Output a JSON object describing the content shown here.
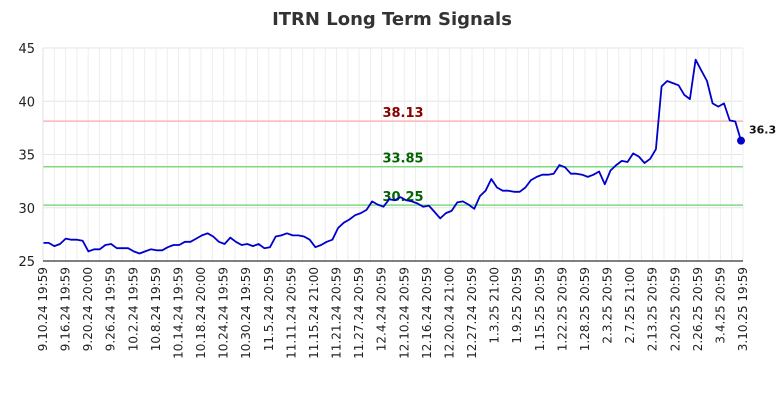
{
  "chart_data": {
    "type": "line",
    "title": "ITRN Long Term Signals",
    "xlabel": "",
    "ylabel": "",
    "ylim": [
      25,
      45
    ],
    "yticks": [
      25,
      30,
      35,
      40,
      45
    ],
    "grid": true,
    "x_tick_labels": [
      "9.10.24 19:59",
      "9.16.24 19:59",
      "9.20.24 20:00",
      "9.26.24 19:59",
      "10.2.24 19:59",
      "10.8.24 19:59",
      "10.14.24 19:59",
      "10.18.24 20:00",
      "10.24.24 19:59",
      "10.30.24 19:59",
      "11.5.24 20:59",
      "11.11.24 20:59",
      "11.15.24 21:00",
      "11.21.24 20:59",
      "11.27.24 20:59",
      "12.4.24 20:59",
      "12.10.24 20:59",
      "12.16.24 20:59",
      "12.20.24 21:00",
      "12.27.24 20:59",
      "1.3.25 21:00",
      "1.9.25 20:59",
      "1.15.25 20:59",
      "1.22.25 20:59",
      "1.28.25 20:59",
      "2.3.25 20:59",
      "2.7.25 21:00",
      "2.13.25 20:59",
      "2.20.25 20:59",
      "2.26.25 20:59",
      "3.4.25 20:59",
      "3.10.25 19:59"
    ],
    "reference_lines": [
      {
        "label": "38.13",
        "value": 38.13,
        "color": "#ffb3b3",
        "label_color": "#8b0000"
      },
      {
        "label": "33.85",
        "value": 33.85,
        "color": "#80d980",
        "label_color": "#006400"
      },
      {
        "label": "30.25",
        "value": 30.25,
        "color": "#80d980",
        "label_color": "#006400"
      }
    ],
    "series": [
      {
        "color": "#0000cc",
        "values": [
          26.7,
          26.7,
          26.4,
          26.6,
          27.1,
          27.0,
          27.0,
          26.9,
          25.9,
          26.1,
          26.1,
          26.5,
          26.6,
          26.2,
          26.2,
          26.2,
          25.9,
          25.7,
          25.9,
          26.1,
          26.0,
          26.0,
          26.3,
          26.5,
          26.5,
          26.8,
          26.8,
          27.1,
          27.4,
          27.6,
          27.3,
          26.8,
          26.6,
          27.2,
          26.8,
          26.5,
          26.6,
          26.4,
          26.6,
          26.2,
          26.3,
          27.3,
          27.4,
          27.6,
          27.4,
          27.4,
          27.3,
          27.0,
          26.3,
          26.5,
          26.8,
          27.0,
          28.1,
          28.6,
          28.9,
          29.3,
          29.5,
          29.8,
          30.6,
          30.3,
          30.1,
          30.8,
          30.7,
          31.0,
          30.7,
          30.6,
          30.4,
          30.1,
          30.2,
          29.6,
          29.0,
          29.5,
          29.7,
          30.5,
          30.6,
          30.3,
          29.9,
          31.1,
          31.6,
          32.7,
          31.9,
          31.6,
          31.6,
          31.5,
          31.5,
          31.9,
          32.6,
          32.9,
          33.1,
          33.1,
          33.2,
          34.0,
          33.8,
          33.2,
          33.2,
          33.1,
          32.9,
          33.1,
          33.4,
          32.2,
          33.5,
          34.0,
          34.4,
          34.3,
          35.1,
          34.8,
          34.2,
          34.6,
          35.5,
          41.4,
          41.9,
          41.7,
          41.5,
          40.6,
          40.2,
          43.9,
          42.9,
          41.9,
          39.8,
          39.5,
          39.8,
          38.2,
          38.1,
          36.3
        ],
        "end_label": "36.3"
      }
    ]
  }
}
